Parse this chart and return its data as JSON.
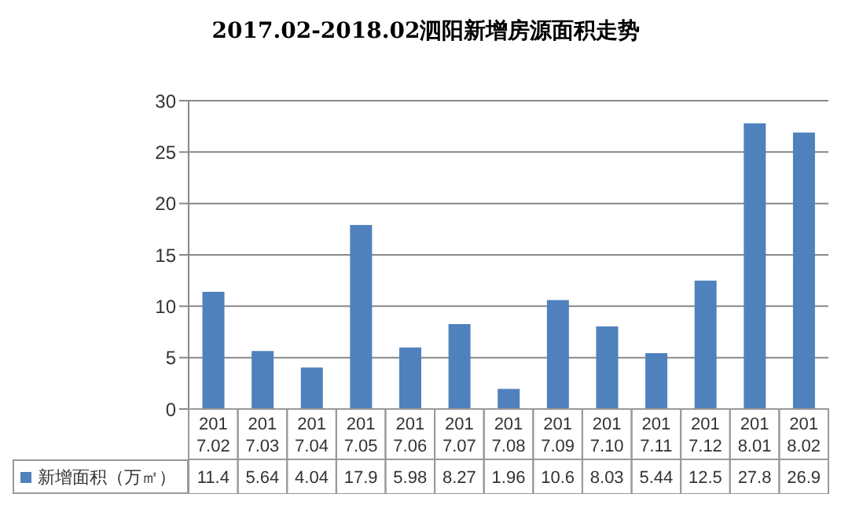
{
  "chart_data": {
    "type": "bar",
    "title": "2017.02-2018.02泗阳新增房源面积走势",
    "categories": [
      "2017.02",
      "2017.03",
      "2017.04",
      "2017.05",
      "2017.06",
      "2017.07",
      "2017.08",
      "2017.09",
      "2017.10",
      "2017.11",
      "2017.12",
      "2018.01",
      "2018.02"
    ],
    "series": [
      {
        "name": "新增面积（万㎡）",
        "color": "#4f81bd",
        "values": [
          11.4,
          5.64,
          4.04,
          17.9,
          5.98,
          8.27,
          1.96,
          10.6,
          8.03,
          5.44,
          12.5,
          27.8,
          26.9
        ],
        "value_labels": [
          "11.4",
          "5.64",
          "4.04",
          "17.9",
          "5.98",
          "8.27",
          "1.96",
          "10.6",
          "8.03",
          "5.44",
          "12.5",
          "27.8",
          "26.9"
        ]
      }
    ],
    "ylim": [
      0,
      30
    ],
    "yticks": [
      0,
      5,
      10,
      15,
      20,
      25,
      30
    ],
    "grid": "y",
    "legend": "bottom left"
  }
}
